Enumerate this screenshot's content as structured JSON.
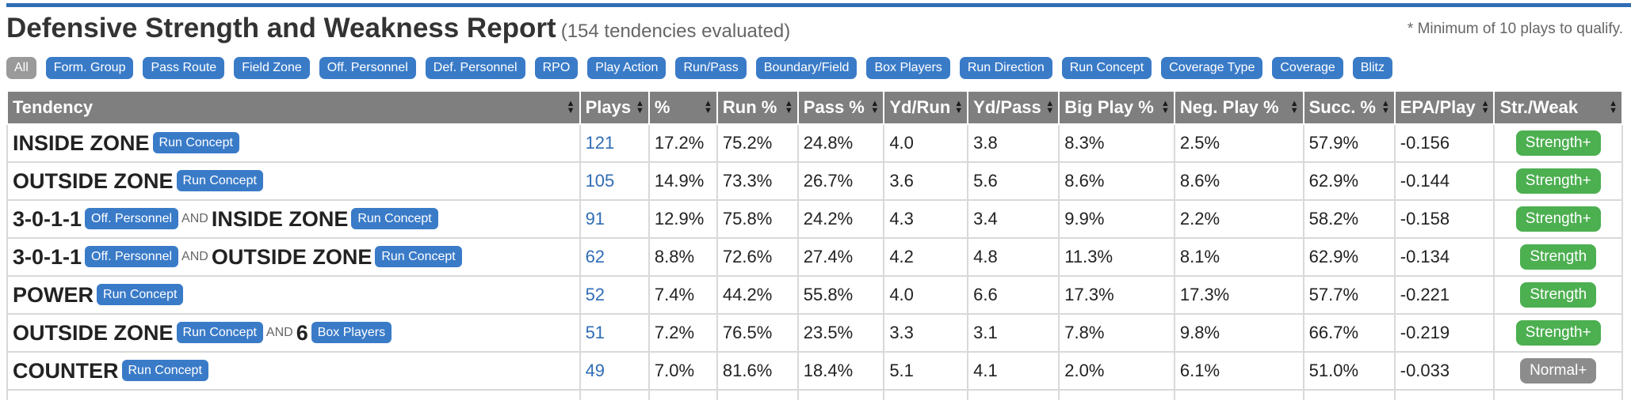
{
  "header": {
    "title": "Defensive Strength and Weakness Report",
    "subtitle": "(154 tendencies evaluated)",
    "note": "* Minimum of 10 plays to qualify."
  },
  "filters": [
    "All",
    "Form. Group",
    "Pass Route",
    "Field Zone",
    "Off. Personnel",
    "Def. Personnel",
    "RPO",
    "Play Action",
    "Run/Pass",
    "Boundary/Field",
    "Box Players",
    "Run Direction",
    "Run Concept",
    "Coverage Type",
    "Coverage",
    "Blitz"
  ],
  "columns": [
    "Tendency",
    "Plays",
    "%",
    "Run %",
    "Pass %",
    "Yd/Run",
    "Yd/Pass",
    "Big Play %",
    "Neg. Play %",
    "Succ. %",
    "EPA/Play",
    "Str./Weak"
  ],
  "connector": "AND",
  "rows": [
    {
      "parts": [
        {
          "value": "INSIDE ZONE",
          "tag": "Run Concept"
        }
      ],
      "plays": "121",
      "pct": "17.2%",
      "run": "75.2%",
      "pass": "24.8%",
      "ydrun": "4.0",
      "ydpass": "3.8",
      "big": "8.3%",
      "neg": "2.5%",
      "succ": "57.9%",
      "epa": "-0.156",
      "sw": "Strength+",
      "sw_color": "#4caf50"
    },
    {
      "parts": [
        {
          "value": "OUTSIDE ZONE",
          "tag": "Run Concept"
        }
      ],
      "plays": "105",
      "pct": "14.9%",
      "run": "73.3%",
      "pass": "26.7%",
      "ydrun": "3.6",
      "ydpass": "5.6",
      "big": "8.6%",
      "neg": "8.6%",
      "succ": "62.9%",
      "epa": "-0.144",
      "sw": "Strength+",
      "sw_color": "#4caf50"
    },
    {
      "parts": [
        {
          "value": "3-0-1-1",
          "tag": "Off. Personnel"
        },
        {
          "value": "INSIDE ZONE",
          "tag": "Run Concept"
        }
      ],
      "plays": "91",
      "pct": "12.9%",
      "run": "75.8%",
      "pass": "24.2%",
      "ydrun": "4.3",
      "ydpass": "3.4",
      "big": "9.9%",
      "neg": "2.2%",
      "succ": "58.2%",
      "epa": "-0.158",
      "sw": "Strength+",
      "sw_color": "#4caf50"
    },
    {
      "parts": [
        {
          "value": "3-0-1-1",
          "tag": "Off. Personnel"
        },
        {
          "value": "OUTSIDE ZONE",
          "tag": "Run Concept"
        }
      ],
      "plays": "62",
      "pct": "8.8%",
      "run": "72.6%",
      "pass": "27.4%",
      "ydrun": "4.2",
      "ydpass": "4.8",
      "big": "11.3%",
      "neg": "8.1%",
      "succ": "62.9%",
      "epa": "-0.134",
      "sw": "Strength",
      "sw_color": "#4caf50"
    },
    {
      "parts": [
        {
          "value": "POWER",
          "tag": "Run Concept"
        }
      ],
      "plays": "52",
      "pct": "7.4%",
      "run": "44.2%",
      "pass": "55.8%",
      "ydrun": "4.0",
      "ydpass": "6.6",
      "big": "17.3%",
      "neg": "17.3%",
      "succ": "57.7%",
      "epa": "-0.221",
      "sw": "Strength",
      "sw_color": "#4caf50"
    },
    {
      "parts": [
        {
          "value": "OUTSIDE ZONE",
          "tag": "Run Concept"
        },
        {
          "value": "6",
          "tag": "Box Players"
        }
      ],
      "plays": "51",
      "pct": "7.2%",
      "run": "76.5%",
      "pass": "23.5%",
      "ydrun": "3.3",
      "ydpass": "3.1",
      "big": "7.8%",
      "neg": "9.8%",
      "succ": "66.7%",
      "epa": "-0.219",
      "sw": "Strength+",
      "sw_color": "#4caf50"
    },
    {
      "parts": [
        {
          "value": "COUNTER",
          "tag": "Run Concept"
        }
      ],
      "plays": "49",
      "pct": "7.0%",
      "run": "81.6%",
      "pass": "18.4%",
      "ydrun": "5.1",
      "ydpass": "4.1",
      "big": "2.0%",
      "neg": "6.1%",
      "succ": "51.0%",
      "epa": "-0.033",
      "sw": "Normal+",
      "sw_color": "#8c8c8c"
    }
  ],
  "colors": {
    "accent": "#2f6db5",
    "chip": "#3a7bc8",
    "chip_active": "#9a9a9a",
    "header_bg": "#7f7f7f",
    "strength": "#4caf50",
    "normal": "#8c8c8c"
  },
  "icons": {
    "sort": "sort-arrows-icon"
  }
}
